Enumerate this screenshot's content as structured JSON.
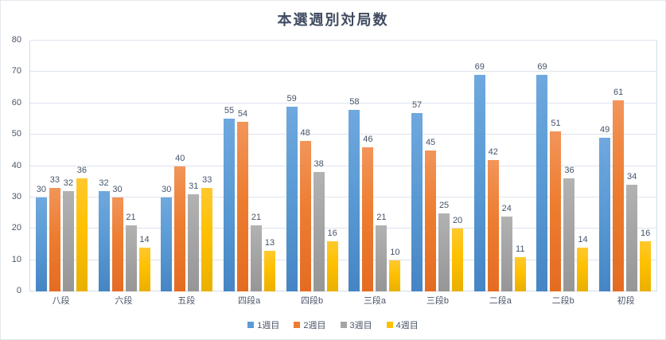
{
  "chart_data": {
    "type": "bar",
    "title": "本選週別対局数",
    "categories": [
      "八段",
      "六段",
      "五段",
      "四段a",
      "四段b",
      "三段a",
      "三段b",
      "二段a",
      "二段b",
      "初段"
    ],
    "series": [
      {
        "name": "1週目",
        "color": "#5B9BD5",
        "values": [
          30,
          32,
          30,
          55,
          59,
          58,
          57,
          69,
          69,
          49
        ]
      },
      {
        "name": "2週目",
        "color": "#ED7D31",
        "values": [
          33,
          30,
          40,
          54,
          48,
          46,
          45,
          42,
          51,
          61
        ]
      },
      {
        "name": "3週目",
        "color": "#A5A5A5",
        "values": [
          32,
          21,
          31,
          21,
          38,
          21,
          25,
          24,
          36,
          34
        ]
      },
      {
        "name": "4週目",
        "color": "#FFC000",
        "values": [
          36,
          14,
          33,
          13,
          16,
          10,
          20,
          11,
          14,
          16
        ]
      }
    ],
    "xlabel": "",
    "ylabel": "",
    "ylim": [
      0,
      80
    ],
    "ytick_step": 10,
    "yticks": [
      0,
      10,
      20,
      30,
      40,
      50,
      60,
      70,
      80
    ],
    "grid": true,
    "data_labels": true,
    "legend_position": "bottom",
    "text_color": "#44546A",
    "gridline_color": "#DDE3ED",
    "background_color": "#FFFFFF"
  }
}
